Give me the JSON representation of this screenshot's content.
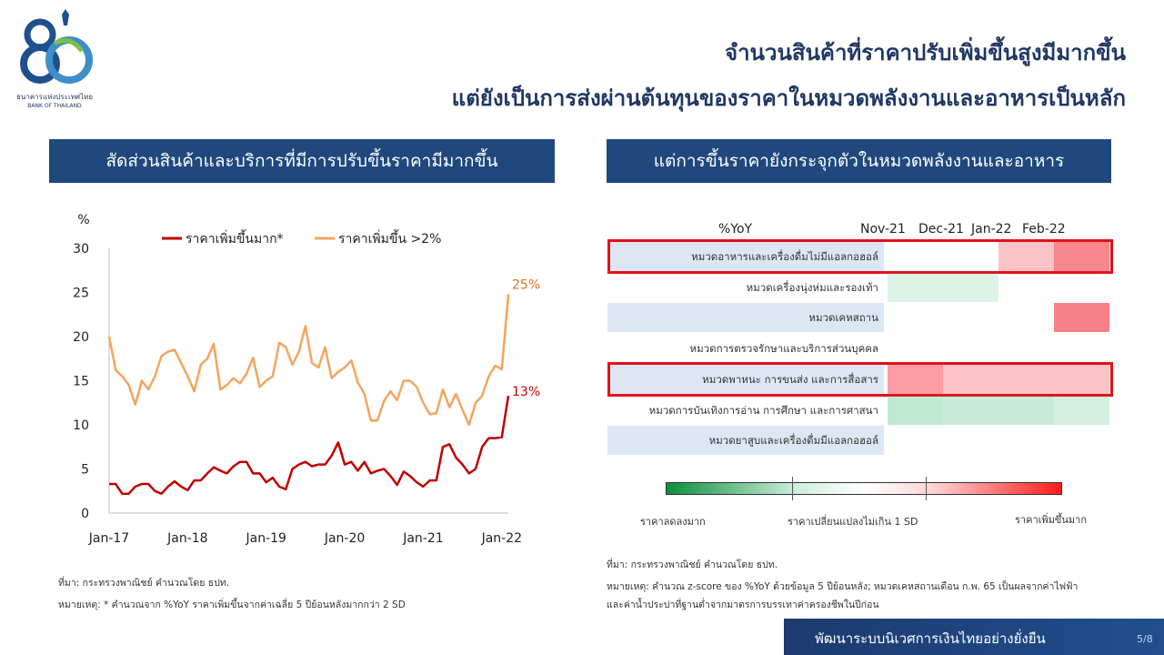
{
  "logo": {
    "number": "80",
    "name_th": "ธนาคารแห่งประเทศไทย",
    "name_en": "BANK OF THAILAND"
  },
  "title": {
    "line1": "จำนวนสินค้าที่ราคาปรับเพิ่มขึ้นสูงมีมากขึ้น",
    "line2": "แต่ยังเป็นการส่งผ่านต้นทุนของราคาในหมวดพลังงานและอาหารเป็นหลัก"
  },
  "left_panel": {
    "header": "สัดส่วนสินค้าและบริการที่มีการปรับขึ้นราคามีมากขึ้น",
    "source": "ที่มา: กระทรวงพาณิชย์ คำนวณโดย ธปท.",
    "note": "หมายเหตุ: * คำนวณจาก %YoY ราคาเพิ่มขึ้นจากค่าเฉลี่ย 5 ปีย้อนหลังมากกว่า 2 SD"
  },
  "right_panel": {
    "header": "แต่การขึ้นราคายังกระจุกตัวในหมวดพลังงานและอาหาร",
    "source": "ที่มา: กระทรวงพาณิชย์ คำนวณโดย ธปท.",
    "note_line1": "หมายเหตุ: คำนวณ z-score ของ %YoY ด้วยข้อมูล 5 ปีย้อนหลัง; หมวดเคหสถานเดือน ก.พ. 65 เป็นผลจากค่าไฟฟ้า",
    "note_line2": "และค่าน้ำประปาที่ฐานต่ำจากมาตรการบรรเทาค่าครองชีพในปีก่อน",
    "scale_labels": {
      "low": "ราคาลดลงมาก",
      "mid": "ราคาเปลี่ยนแปลงไม่เกิน 1 SD",
      "high": "ราคาเพิ่มขึ้นมาก"
    }
  },
  "footer": {
    "slogan": "พัฒนาระบบนิเวศการเงินไทยอย่างยั่งยืน",
    "page": "5/8"
  },
  "colors": {
    "navy": "#1f497d",
    "series_red": "#c00000",
    "series_orange": "#f4a460",
    "highlight": "#e3101a"
  },
  "chart_data": [
    {
      "type": "line",
      "ylabel": "%",
      "ylim": [
        0,
        30
      ],
      "yticks": [
        "0",
        "5",
        "10",
        "15",
        "20",
        "25",
        "30"
      ],
      "xticks": [
        "Jan-17",
        "Jan-18",
        "Jan-19",
        "Jan-20",
        "Jan-21",
        "Jan-22"
      ],
      "x_start": "Jan-17",
      "series": [
        {
          "name": "ราคาเพิ่มขึ้นมาก*",
          "color": "#c00000",
          "end_label": "13%",
          "values": [
            3.3,
            3.3,
            2.2,
            2.2,
            3.0,
            3.3,
            3.3,
            2.5,
            2.2,
            3.0,
            3.6,
            3.0,
            2.6,
            3.7,
            3.7,
            4.5,
            5.2,
            4.8,
            4.5,
            5.3,
            5.8,
            5.8,
            4.5,
            4.5,
            3.5,
            4.0,
            3.0,
            2.7,
            5.0,
            5.5,
            5.8,
            5.3,
            5.5,
            5.5,
            6.5,
            8.0,
            5.5,
            5.8,
            4.8,
            5.8,
            4.5,
            4.8,
            5.0,
            4.2,
            3.2,
            4.7,
            4.2,
            3.5,
            3.0,
            3.7,
            3.7,
            7.5,
            7.8,
            6.3,
            5.5,
            4.5,
            5.0,
            7.5,
            8.5,
            8.5,
            8.6,
            13.3
          ]
        },
        {
          "name": "ราคาเพิ่มขึ้น >2%",
          "color": "#f4a460",
          "end_label": "25%",
          "values": [
            20.0,
            16.2,
            15.5,
            14.5,
            12.3,
            15.0,
            14.0,
            15.5,
            17.8,
            18.3,
            18.5,
            17.0,
            15.5,
            13.8,
            16.8,
            17.5,
            19.2,
            14.0,
            14.5,
            15.3,
            14.7,
            15.8,
            17.6,
            14.3,
            15.0,
            15.5,
            19.3,
            18.8,
            16.8,
            18.3,
            21.2,
            17.0,
            16.5,
            18.8,
            15.3,
            16.0,
            16.5,
            17.3,
            14.8,
            13.5,
            10.5,
            10.5,
            12.7,
            13.8,
            12.8,
            15.0,
            15.0,
            14.3,
            12.5,
            11.2,
            11.3,
            14.0,
            12.0,
            13.5,
            11.7,
            10.0,
            12.5,
            13.3,
            15.5,
            16.7,
            16.3,
            24.8
          ]
        }
      ]
    },
    {
      "type": "heatmap",
      "title": "%YoY",
      "columns": [
        "Nov-21",
        "Dec-21",
        "Jan-22",
        "Feb-22"
      ],
      "rows": [
        {
          "label": "หมวดอาหารและเครื่องดื่มไม่มีแอลกอฮอล์",
          "values": [
            0,
            0,
            0.9,
            1.8
          ],
          "highlighted": true
        },
        {
          "label": "หมวดเครื่องนุ่งห่มและรองเท้า",
          "values": [
            -0.8,
            -0.8,
            0,
            0
          ],
          "highlighted": false
        },
        {
          "label": "หมวดเคหสถาน",
          "values": [
            0,
            0,
            0,
            1.9
          ],
          "highlighted": false
        },
        {
          "label": "หมวดการตรวจรักษาและบริการส่วนบุคคล",
          "values": [
            0,
            0,
            0,
            0
          ],
          "highlighted": false
        },
        {
          "label": "หมวดพาหนะ การขนส่ง และการสื่อสาร",
          "values": [
            1.5,
            0.9,
            0.9,
            0.9
          ],
          "highlighted": true
        },
        {
          "label": "หมวดการบันเทิงการอ่าน การศึกษา และการศาสนา",
          "values": [
            -1.4,
            -1.2,
            -1.2,
            -1.0
          ],
          "highlighted": false
        },
        {
          "label": "หมวดยาสูบและเครื่องดื่มมีแอลกอฮอล์",
          "values": [
            0,
            0,
            0,
            0
          ],
          "highlighted": false
        }
      ]
    }
  ]
}
